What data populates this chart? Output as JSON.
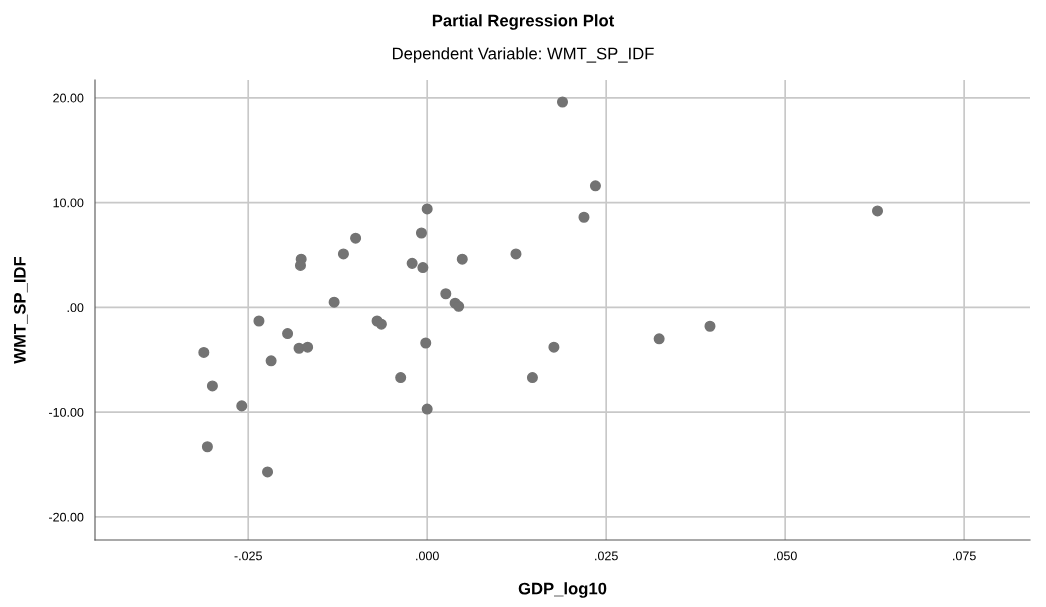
{
  "chart_data": {
    "type": "scatter",
    "title": "Partial Regression Plot",
    "subtitle": "Dependent Variable: WMT_SP_IDF",
    "xlabel": "GDP_log10",
    "ylabel": "WMT_SP_IDF",
    "x": [
      0.0189,
      0.0235,
      0.0219,
      0.0,
      -0.0008,
      -0.01,
      -0.0117,
      -0.0176,
      -0.0177,
      -0.0021,
      -0.0006,
      0.0049,
      0.0124,
      -0.013,
      0.0026,
      0.0039,
      0.0044,
      -0.0235,
      -0.007,
      -0.0064,
      -0.0195,
      -0.0312,
      -0.0179,
      -0.0167,
      -0.0002,
      -0.0218,
      -0.03,
      -0.0037,
      -0.0259,
      0.0,
      -0.0307,
      -0.0223,
      0.0177,
      0.0147,
      0.0324,
      0.0395,
      0.0629
    ],
    "values": [
      19.6,
      11.6,
      8.6,
      9.4,
      7.1,
      6.6,
      5.1,
      4.6,
      4.0,
      4.2,
      3.8,
      4.6,
      5.1,
      0.5,
      1.3,
      0.4,
      0.1,
      -1.3,
      -1.3,
      -1.6,
      -2.5,
      -4.3,
      -3.9,
      -3.8,
      -3.4,
      -5.1,
      -7.5,
      -6.7,
      -9.4,
      -9.7,
      -13.3,
      -15.7,
      -3.8,
      -6.7,
      -3.0,
      -1.8,
      9.2
    ],
    "color": "#737373",
    "marker": "circle",
    "xlim": [
      -0.0464,
      0.0842
    ],
    "ylim": [
      -22.2,
      21.7
    ],
    "xticks": [
      {
        "value": -0.025,
        "label": "-.025"
      },
      {
        "value": 0,
        "label": ".000"
      },
      {
        "value": 0.025,
        "label": ".025"
      },
      {
        "value": 0.05,
        "label": ".050"
      },
      {
        "value": 0.075,
        "label": ".075"
      }
    ],
    "yticks": [
      {
        "value": -20,
        "label": "-20.00"
      },
      {
        "value": -10,
        "label": "-10.00"
      },
      {
        "value": 0,
        "label": ".00"
      },
      {
        "value": 10,
        "label": "10.00"
      },
      {
        "value": 20,
        "label": "20.00"
      }
    ],
    "grid": true
  }
}
